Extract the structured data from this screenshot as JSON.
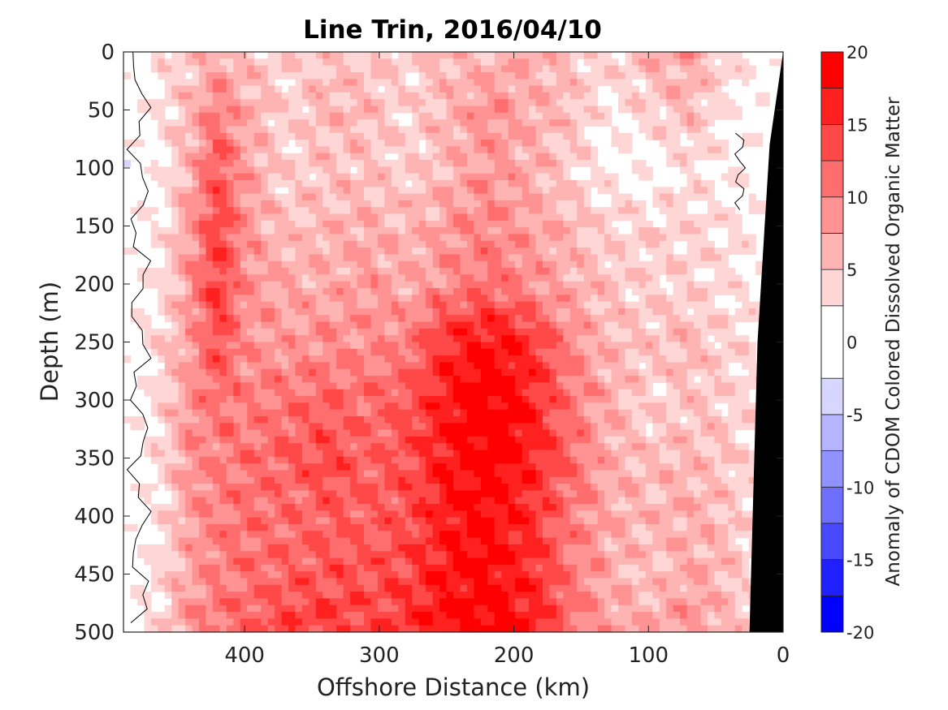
{
  "chart_data": {
    "type": "heatmap",
    "title": "Line Trin, 2016/04/10",
    "xlabel": "Offshore Distance (km)",
    "ylabel": "Depth (m)",
    "xlim": [
      490,
      0
    ],
    "ylim": [
      0,
      500
    ],
    "x_ticks": [
      "400",
      "300",
      "200",
      "100",
      "0"
    ],
    "x_tick_values": [
      400,
      300,
      200,
      100,
      0
    ],
    "y_ticks": [
      "0",
      "50",
      "100",
      "150",
      "200",
      "250",
      "300",
      "350",
      "400",
      "450",
      "500"
    ],
    "y_tick_values": [
      0,
      50,
      100,
      150,
      200,
      250,
      300,
      350,
      400,
      450,
      500
    ],
    "colorbar": {
      "label": "Anomaly of CDOM Colored Dissolved Organic Matter",
      "ticks": [
        "20",
        "15",
        "10",
        "5",
        "0",
        "-5",
        "-10",
        "-15",
        "-20"
      ],
      "tick_values": [
        20,
        15,
        10,
        5,
        0,
        -5,
        -10,
        -15,
        -20
      ],
      "levels": [
        -20,
        -17.5,
        -15,
        -12.5,
        -10,
        -7.5,
        -5,
        -2.5,
        2.5,
        5,
        7.5,
        10,
        12.5,
        15,
        17.5,
        20
      ],
      "colors": [
        "#0000ff",
        "#2020ff",
        "#4848ff",
        "#6e6eff",
        "#9292ff",
        "#b4b4ff",
        "#d6d6ff",
        "#ffffff",
        "#ffd6d6",
        "#ffb4b4",
        "#ff9292",
        "#ff6e6e",
        "#ff4848",
        "#ff2020",
        "#ff0000"
      ]
    },
    "depths": [
      0,
      50,
      100,
      150,
      200,
      250,
      300,
      350,
      400,
      450,
      500
    ],
    "distances": [
      490,
      460,
      440,
      420,
      400,
      370,
      340,
      310,
      280,
      250,
      220,
      190,
      160,
      130,
      100,
      70,
      40,
      20,
      0
    ],
    "values": [
      [
        0,
        3,
        5,
        6,
        5,
        4,
        5,
        5,
        4,
        6,
        6,
        7,
        5,
        4,
        6,
        8,
        4,
        2,
        0
      ],
      [
        0,
        3,
        6,
        11,
        7,
        4,
        6,
        6,
        4,
        6,
        9,
        7,
        6,
        2,
        4,
        6,
        2,
        1,
        0
      ],
      [
        0,
        2,
        7,
        13,
        8,
        4,
        5,
        5,
        4,
        6,
        8,
        7,
        4,
        2,
        1,
        3,
        2,
        1,
        0
      ],
      [
        0,
        3,
        8,
        14,
        9,
        5,
        6,
        7,
        6,
        8,
        10,
        8,
        6,
        4,
        4,
        4,
        3,
        2,
        0
      ],
      [
        0,
        3,
        9,
        15,
        9,
        7,
        7,
        8,
        7,
        9,
        11,
        9,
        7,
        5,
        4,
        4,
        3,
        2,
        0
      ],
      [
        0,
        4,
        8,
        14,
        9,
        8,
        9,
        9,
        10,
        16,
        18,
        16,
        10,
        6,
        5,
        6,
        4,
        3,
        0
      ],
      [
        0,
        4,
        9,
        11,
        10,
        11,
        12,
        11,
        13,
        17,
        20,
        17,
        11,
        7,
        4,
        5,
        4,
        3,
        0
      ],
      [
        0,
        4,
        9,
        10,
        11,
        12,
        14,
        12,
        13,
        17,
        19,
        17,
        12,
        7,
        5,
        6,
        5,
        3,
        0
      ],
      [
        0,
        3,
        8,
        10,
        11,
        11,
        12,
        12,
        13,
        17,
        18,
        16,
        11,
        7,
        6,
        7,
        5,
        3,
        0
      ],
      [
        0,
        4,
        8,
        10,
        11,
        12,
        13,
        13,
        14,
        17,
        18,
        16,
        11,
        7,
        5,
        7,
        6,
        3,
        0
      ],
      [
        0,
        4,
        9,
        11,
        12,
        14,
        15,
        14,
        15,
        18,
        19,
        17,
        12,
        8,
        7,
        9,
        6,
        3,
        0
      ]
    ]
  }
}
